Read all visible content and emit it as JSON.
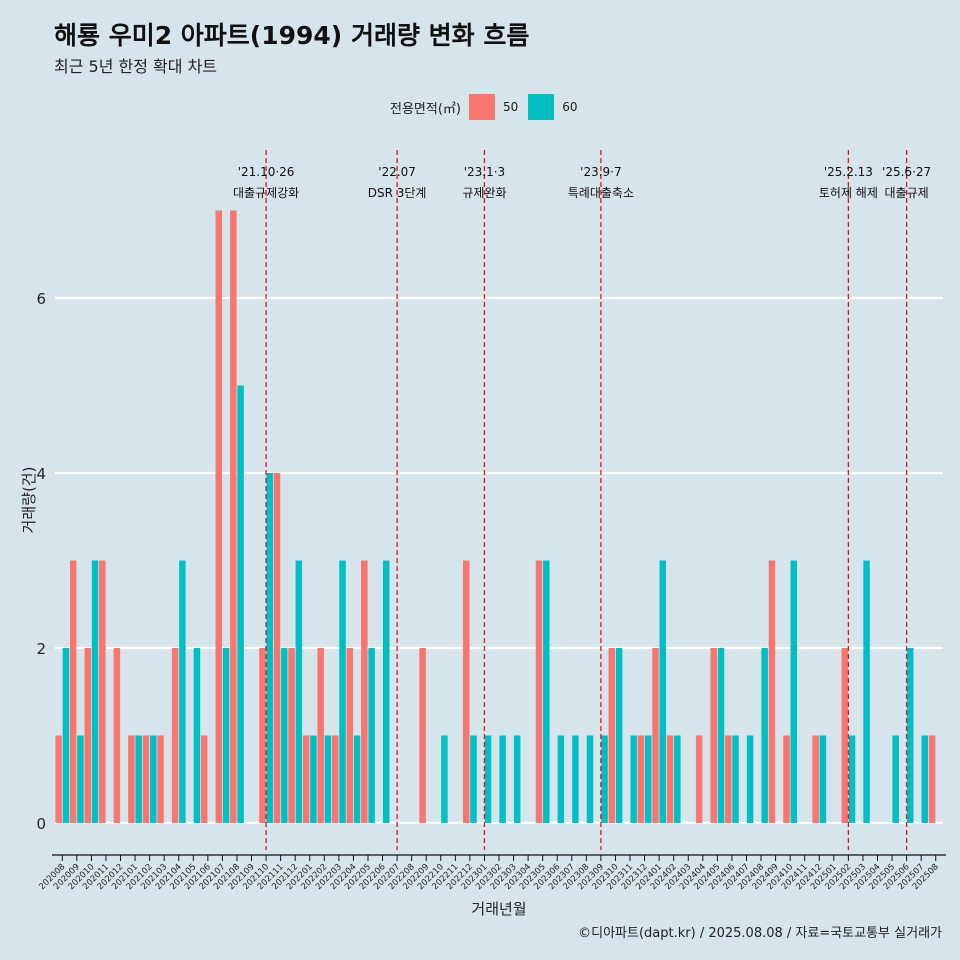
{
  "title": "해룡 우미2 아파트(1994) 거래량 변화 흐름",
  "subtitle": "최근 5년 한정 확대 차트",
  "caption": "©디아파트(dapt.kr) / 2025.08.08 / 자료=국토교통부 실거래가",
  "legend": {
    "title": "전용면적(㎡)",
    "items": [
      {
        "label": "50",
        "color": "#f8766d"
      },
      {
        "label": "60",
        "color": "#00bfc4"
      }
    ]
  },
  "chart_data": {
    "type": "bar",
    "xlabel": "거래년월",
    "ylabel": "거래량(건)",
    "ylim": [
      0,
      7
    ],
    "yticks": [
      0,
      2,
      4,
      6
    ],
    "grid": true,
    "legend_position": "top",
    "categories": [
      "202008",
      "202009",
      "202010",
      "202011",
      "202012",
      "202101",
      "202102",
      "202103",
      "202104",
      "202105",
      "202106",
      "202107",
      "202108",
      "202109",
      "202110",
      "202111",
      "202112",
      "202201",
      "202202",
      "202203",
      "202204",
      "202205",
      "202206",
      "202207",
      "202208",
      "202209",
      "202210",
      "202211",
      "202212",
      "202301",
      "202302",
      "202303",
      "202304",
      "202305",
      "202306",
      "202307",
      "202308",
      "202309",
      "202310",
      "202311",
      "202312",
      "202401",
      "202402",
      "202403",
      "202404",
      "202405",
      "202406",
      "202407",
      "202408",
      "202409",
      "202410",
      "202411",
      "202412",
      "202501",
      "202502",
      "202503",
      "202504",
      "202505",
      "202506",
      "202507",
      "202508"
    ],
    "series": [
      {
        "name": "50",
        "color": "#f8766d",
        "values": [
          1,
          3,
          2,
          3,
          2,
          1,
          1,
          1,
          2,
          0,
          1,
          7,
          7,
          0,
          2,
          4,
          2,
          1,
          2,
          1,
          2,
          3,
          0,
          0,
          0,
          2,
          0,
          0,
          3,
          0,
          0,
          0,
          0,
          3,
          0,
          0,
          0,
          0,
          2,
          0,
          1,
          2,
          1,
          0,
          1,
          2,
          1,
          0,
          0,
          3,
          1,
          0,
          1,
          0,
          2,
          0,
          0,
          0,
          0,
          0,
          1
        ]
      },
      {
        "name": "60",
        "color": "#00bfc4",
        "values": [
          2,
          1,
          3,
          0,
          0,
          1,
          1,
          0,
          3,
          2,
          0,
          2,
          5,
          0,
          4,
          2,
          3,
          1,
          1,
          3,
          1,
          2,
          3,
          0,
          0,
          0,
          1,
          0,
          1,
          1,
          1,
          1,
          0,
          3,
          1,
          1,
          1,
          1,
          2,
          1,
          1,
          3,
          1,
          0,
          0,
          2,
          1,
          1,
          2,
          0,
          3,
          0,
          1,
          0,
          1,
          3,
          0,
          1,
          2,
          1,
          0
        ]
      }
    ],
    "annotations": [
      {
        "x": "202110",
        "date": "'21.10·26",
        "label": "대출규제강화"
      },
      {
        "x": "202207",
        "date": "'22.07",
        "label": "DSR 3단계"
      },
      {
        "x": "202301",
        "date": "'23.1·3",
        "label": "규제완화"
      },
      {
        "x": "202309",
        "date": "'23.9·7",
        "label": "특례대출축소"
      },
      {
        "x": "202502",
        "date": "'25.2.13",
        "label": "토허제 해제"
      },
      {
        "x": "202506",
        "date": "'25.6·27",
        "label": "대출규제"
      }
    ]
  }
}
